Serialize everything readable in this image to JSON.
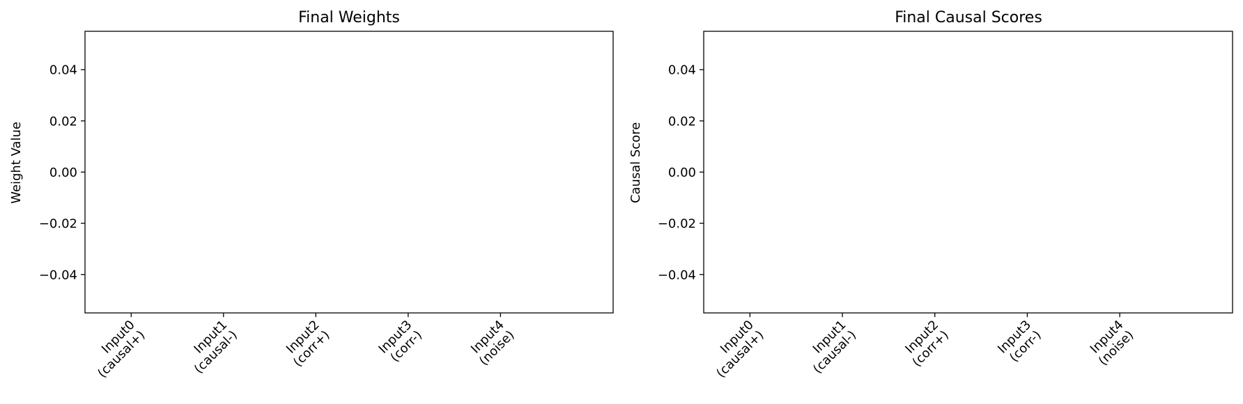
{
  "chart_data": [
    {
      "type": "bar",
      "title": "Final Weights",
      "xlabel": "",
      "ylabel": "Weight Value",
      "categories": [
        [
          "Input0",
          "(causal+)"
        ],
        [
          "Input1",
          "(causal-)"
        ],
        [
          "Input2",
          "(corr+)"
        ],
        [
          "Input3",
          "(corr-)"
        ],
        [
          "Input4",
          "(noise)"
        ]
      ],
      "values": [
        0,
        0,
        0,
        0,
        0
      ],
      "ylim": [
        -0.055,
        0.055
      ],
      "yticks": [
        -0.04,
        -0.02,
        0.0,
        0.02,
        0.04
      ],
      "ytick_labels": [
        "−0.04",
        "−0.02",
        "0.00",
        "0.02",
        "0.04"
      ],
      "grid": false,
      "bar_color": "#1f77b4"
    },
    {
      "type": "bar",
      "title": "Final Causal Scores",
      "xlabel": "",
      "ylabel": "Causal Score",
      "categories": [
        [
          "Input0",
          "(causal+)"
        ],
        [
          "Input1",
          "(causal-)"
        ],
        [
          "Input2",
          "(corr+)"
        ],
        [
          "Input3",
          "(corr-)"
        ],
        [
          "Input4",
          "(noise)"
        ]
      ],
      "values": [
        0,
        0,
        0,
        0,
        0
      ],
      "ylim": [
        -0.055,
        0.055
      ],
      "yticks": [
        -0.04,
        -0.02,
        0.0,
        0.02,
        0.04
      ],
      "ytick_labels": [
        "−0.04",
        "−0.02",
        "0.00",
        "0.02",
        "0.04"
      ],
      "grid": false,
      "bar_color": "#1f77b4"
    }
  ]
}
